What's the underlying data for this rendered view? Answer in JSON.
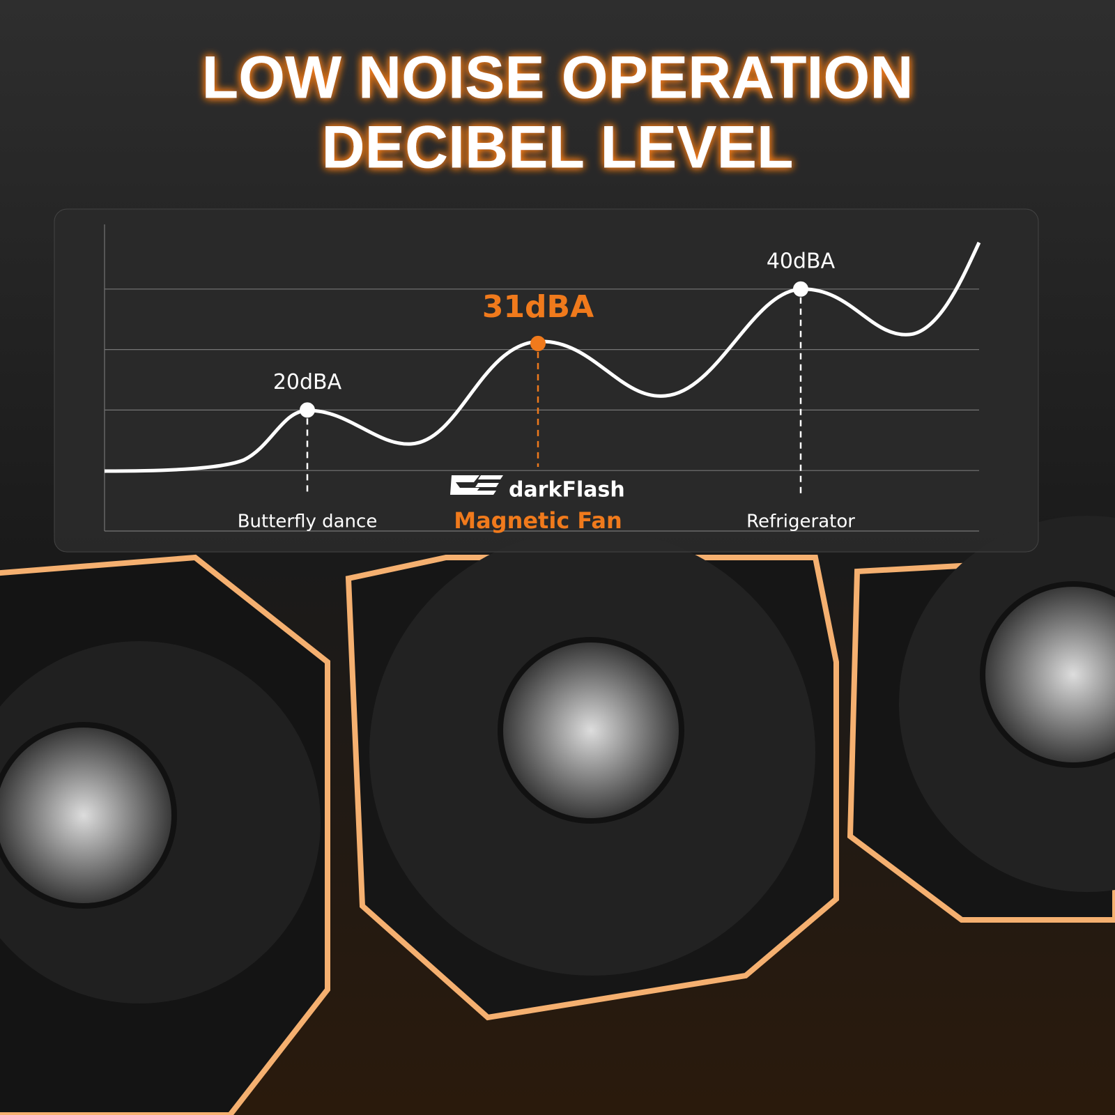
{
  "chart_data": {
    "type": "scatter",
    "title": "LOW NOISE OPERATION",
    "subtitle": "DECIBEL LEVEL",
    "brand": "darkFlash",
    "categories": [
      "Butterfly dance",
      "Magnetic Fan",
      "Refrigerator"
    ],
    "values": [
      20,
      31,
      40
    ],
    "value_labels": [
      "20dBA",
      "31dBA",
      "40dBA"
    ],
    "point_colors": [
      "#ffffff",
      "#f07a1c",
      "#ffffff"
    ],
    "ylim": [
      0,
      50
    ],
    "yticks": [
      0,
      10,
      20,
      30,
      40
    ],
    "grid": true
  }
}
